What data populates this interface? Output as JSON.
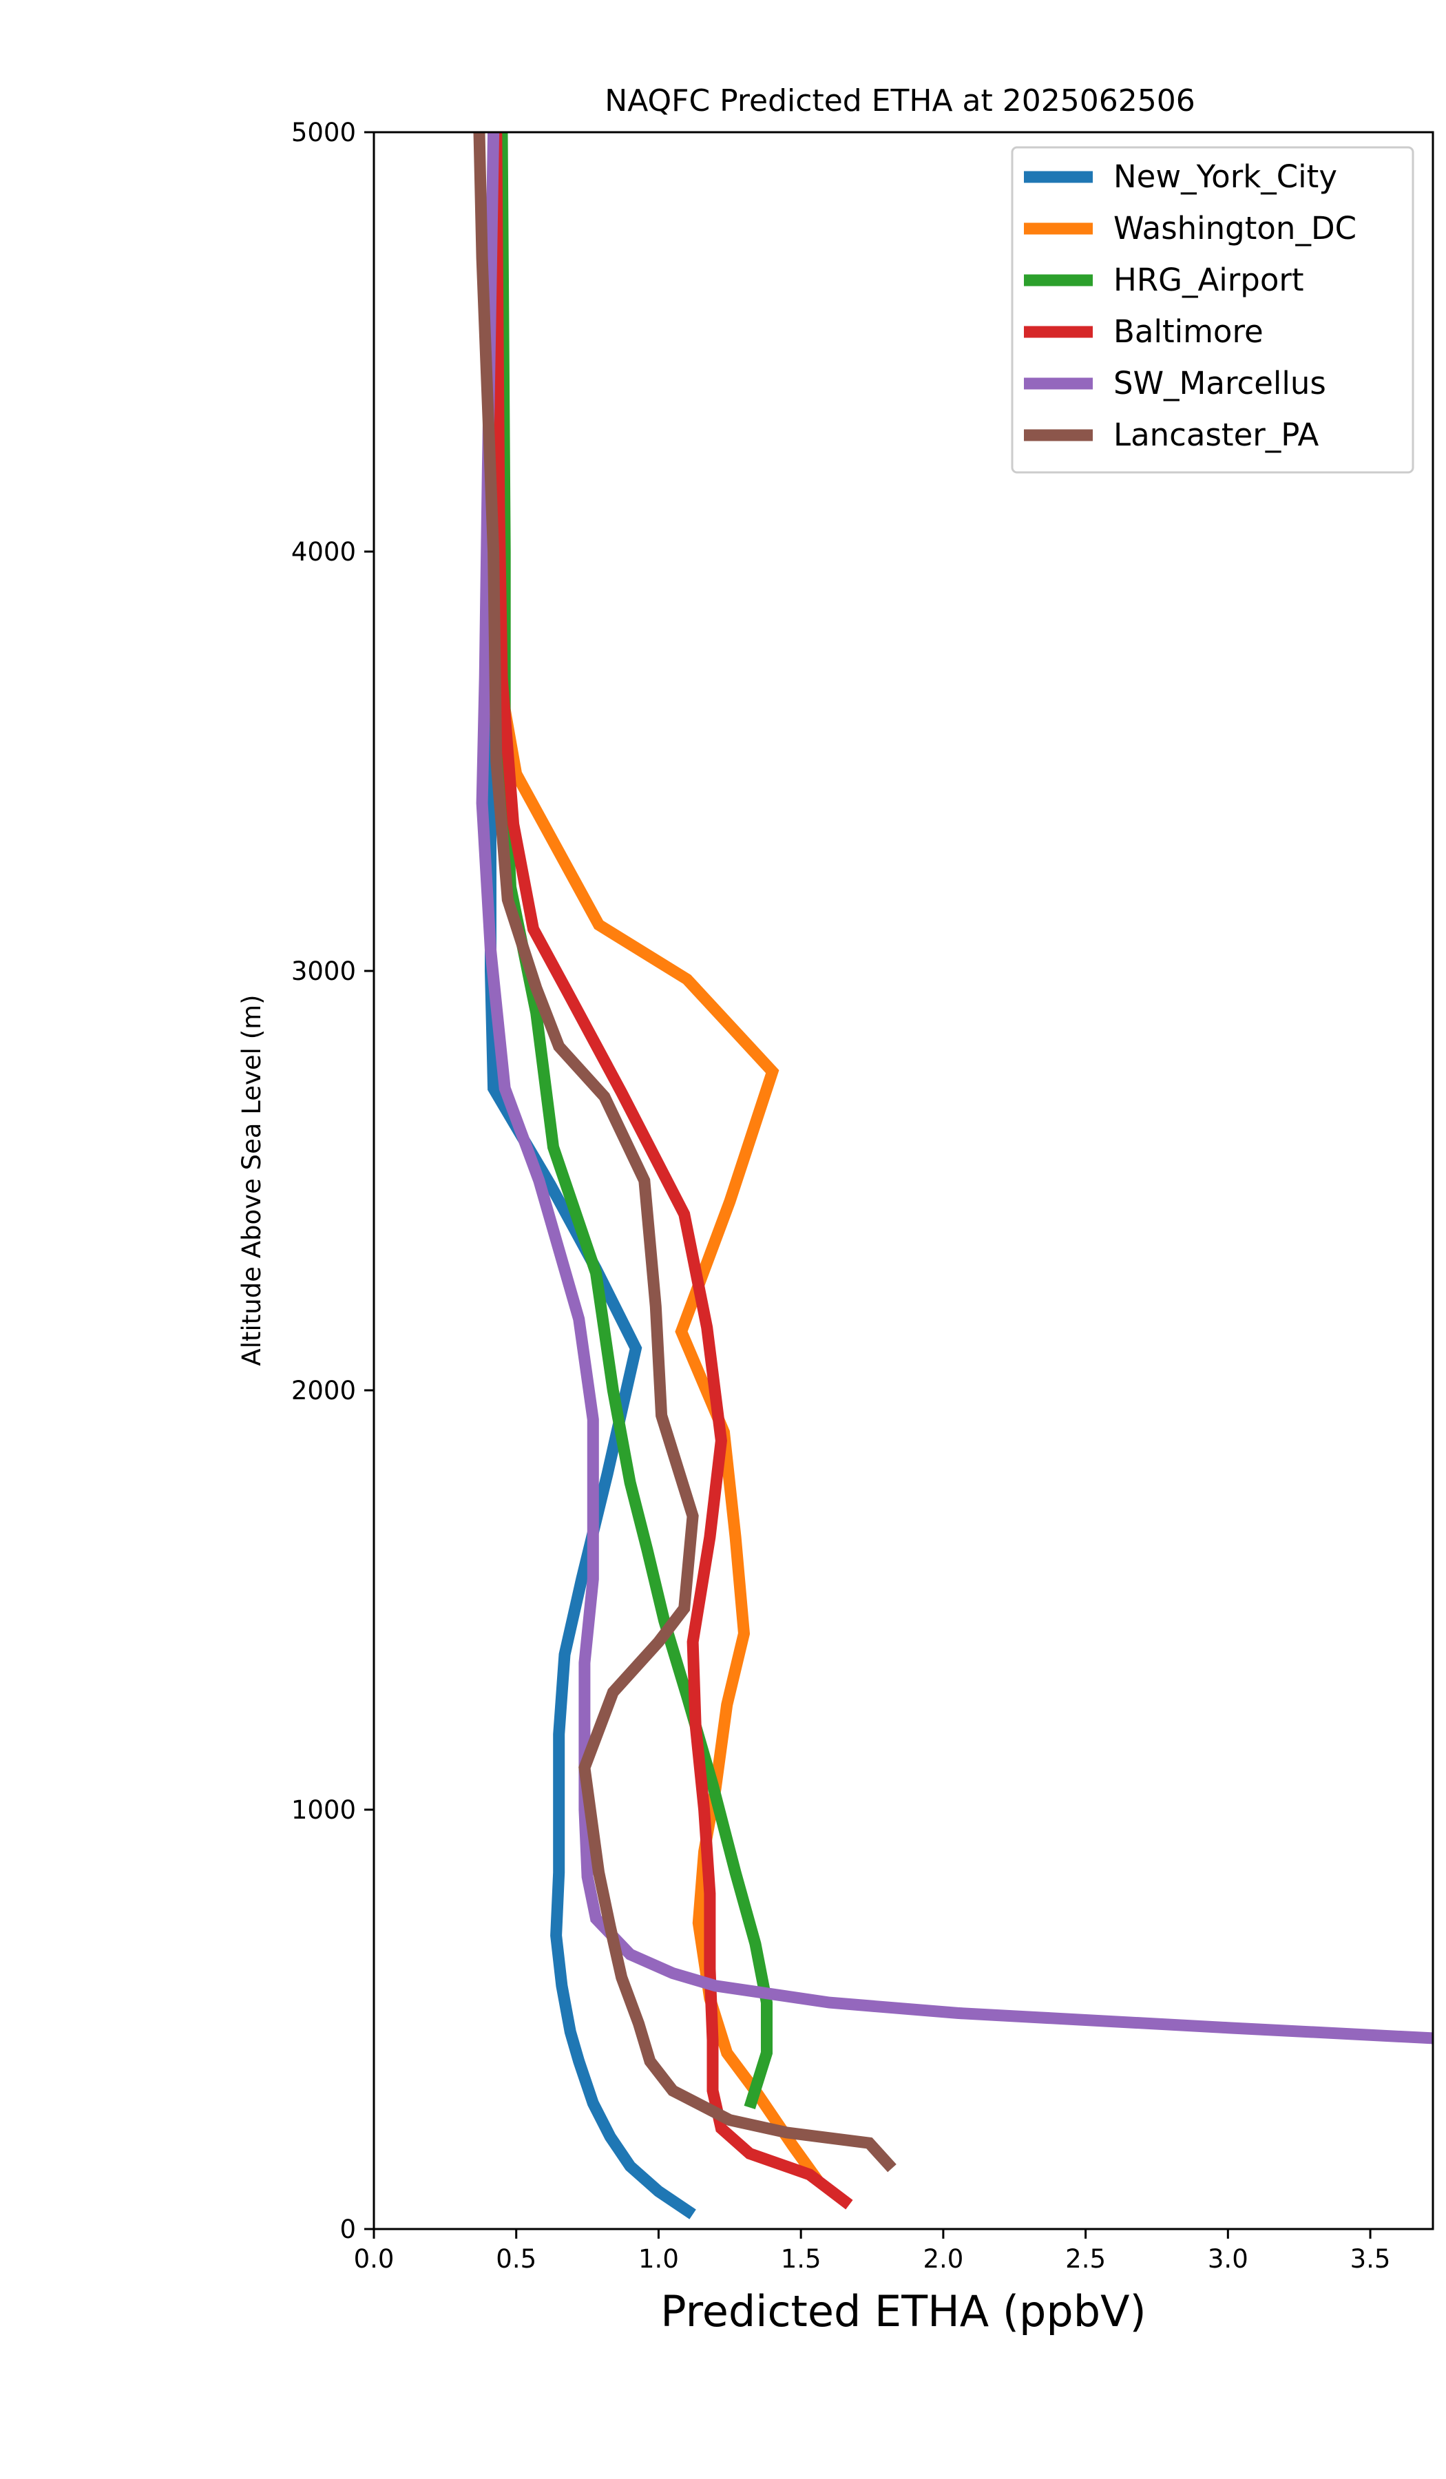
{
  "chart_data": {
    "type": "line",
    "title": "NAQFC Predicted ETHA at 2025062506",
    "xlabel": "Predicted ETHA (ppbV)",
    "ylabel": "Altitude Above Sea Level (m)",
    "xlim": [
      0,
      3.72
    ],
    "ylim": [
      0,
      5000
    ],
    "xticks": [
      0,
      0.5,
      1,
      1.5,
      2,
      2.5,
      3,
      3.5
    ],
    "xtick_labels": [
      "0.0",
      "0.5",
      "1.0",
      "1.5",
      "2.0",
      "2.5",
      "3.0",
      "3.5"
    ],
    "yticks": [
      0,
      1000,
      2000,
      3000,
      4000,
      5000
    ],
    "ytick_labels": [
      "0",
      "1000",
      "2000",
      "3000",
      "4000",
      "5000"
    ],
    "grid": false,
    "legend_position": "top-right",
    "series": [
      {
        "name": "New_York_City",
        "color": "#1f77b4",
        "points": [
          [
            1.12,
            35
          ],
          [
            1.0,
            90
          ],
          [
            0.9,
            150
          ],
          [
            0.83,
            220
          ],
          [
            0.77,
            300
          ],
          [
            0.72,
            400
          ],
          [
            0.69,
            470
          ],
          [
            0.66,
            580
          ],
          [
            0.64,
            700
          ],
          [
            0.65,
            850
          ],
          [
            0.65,
            1000
          ],
          [
            0.65,
            1180
          ],
          [
            0.67,
            1370
          ],
          [
            0.73,
            1550
          ],
          [
            0.82,
            1800
          ],
          [
            0.92,
            2100
          ],
          [
            0.78,
            2290
          ],
          [
            0.62,
            2490
          ],
          [
            0.42,
            2720
          ],
          [
            0.41,
            3000
          ],
          [
            0.41,
            3200
          ],
          [
            0.41,
            4000
          ],
          [
            0.42,
            5000
          ]
        ]
      },
      {
        "name": "Washington_DC",
        "color": "#ff7f0e",
        "points": [
          [
            1.56,
            115
          ],
          [
            1.47,
            200
          ],
          [
            1.35,
            320
          ],
          [
            1.24,
            420
          ],
          [
            1.18,
            550
          ],
          [
            1.14,
            730
          ],
          [
            1.16,
            900
          ],
          [
            1.2,
            1050
          ],
          [
            1.24,
            1250
          ],
          [
            1.3,
            1420
          ],
          [
            1.27,
            1650
          ],
          [
            1.23,
            1900
          ],
          [
            1.08,
            2140
          ],
          [
            1.25,
            2450
          ],
          [
            1.4,
            2760
          ],
          [
            1.1,
            2980
          ],
          [
            0.79,
            3110
          ],
          [
            0.5,
            3470
          ],
          [
            0.44,
            3700
          ],
          [
            0.44,
            4200
          ],
          [
            0.42,
            5000
          ]
        ]
      },
      {
        "name": "HRG_Airport",
        "color": "#2ca02c",
        "points": [
          [
            1.32,
            290
          ],
          [
            1.38,
            420
          ],
          [
            1.38,
            540
          ],
          [
            1.34,
            680
          ],
          [
            1.27,
            850
          ],
          [
            1.19,
            1060
          ],
          [
            1.1,
            1270
          ],
          [
            1.02,
            1450
          ],
          [
            0.96,
            1620
          ],
          [
            0.9,
            1780
          ],
          [
            0.84,
            2000
          ],
          [
            0.78,
            2280
          ],
          [
            0.63,
            2580
          ],
          [
            0.57,
            2900
          ],
          [
            0.48,
            3200
          ],
          [
            0.46,
            3500
          ],
          [
            0.46,
            4000
          ],
          [
            0.45,
            5000
          ]
        ]
      },
      {
        "name": "Baltimore",
        "color": "#d62728",
        "points": [
          [
            1.67,
            58
          ],
          [
            1.53,
            130
          ],
          [
            1.32,
            180
          ],
          [
            1.22,
            240
          ],
          [
            1.19,
            330
          ],
          [
            1.19,
            450
          ],
          [
            1.18,
            620
          ],
          [
            1.18,
            800
          ],
          [
            1.16,
            1000
          ],
          [
            1.13,
            1200
          ],
          [
            1.12,
            1400
          ],
          [
            1.18,
            1650
          ],
          [
            1.22,
            1880
          ],
          [
            1.17,
            2150
          ],
          [
            1.09,
            2420
          ],
          [
            0.87,
            2710
          ],
          [
            0.68,
            2950
          ],
          [
            0.56,
            3100
          ],
          [
            0.49,
            3350
          ],
          [
            0.45,
            3700
          ],
          [
            0.44,
            4100
          ],
          [
            0.43,
            5000
          ]
        ]
      },
      {
        "name": "SW_Marcellus",
        "color": "#9467bd",
        "points": [
          [
            3.72,
            455
          ],
          [
            3.0,
            480
          ],
          [
            2.05,
            515
          ],
          [
            1.6,
            540
          ],
          [
            1.2,
            580
          ],
          [
            1.05,
            610
          ],
          [
            0.9,
            655
          ],
          [
            0.78,
            740
          ],
          [
            0.75,
            840
          ],
          [
            0.74,
            1000
          ],
          [
            0.74,
            1150
          ],
          [
            0.74,
            1350
          ],
          [
            0.77,
            1550
          ],
          [
            0.77,
            1750
          ],
          [
            0.77,
            1930
          ],
          [
            0.72,
            2170
          ],
          [
            0.58,
            2500
          ],
          [
            0.46,
            2720
          ],
          [
            0.41,
            3050
          ],
          [
            0.38,
            3400
          ],
          [
            0.39,
            3700
          ],
          [
            0.4,
            4200
          ],
          [
            0.42,
            5000
          ]
        ]
      },
      {
        "name": "Lancaster_PA",
        "color": "#8c564b",
        "points": [
          [
            1.82,
            145
          ],
          [
            1.74,
            205
          ],
          [
            1.45,
            230
          ],
          [
            1.25,
            260
          ],
          [
            1.05,
            330
          ],
          [
            0.97,
            400
          ],
          [
            0.93,
            490
          ],
          [
            0.87,
            600
          ],
          [
            0.83,
            720
          ],
          [
            0.79,
            850
          ],
          [
            0.77,
            950
          ],
          [
            0.74,
            1100
          ],
          [
            0.84,
            1280
          ],
          [
            1.0,
            1400
          ],
          [
            1.09,
            1480
          ],
          [
            1.12,
            1700
          ],
          [
            1.01,
            1940
          ],
          [
            0.99,
            2200
          ],
          [
            0.95,
            2500
          ],
          [
            0.81,
            2700
          ],
          [
            0.65,
            2820
          ],
          [
            0.57,
            2960
          ],
          [
            0.47,
            3170
          ],
          [
            0.43,
            3500
          ],
          [
            0.42,
            4000
          ],
          [
            0.38,
            4700
          ],
          [
            0.37,
            5000
          ]
        ]
      }
    ]
  }
}
